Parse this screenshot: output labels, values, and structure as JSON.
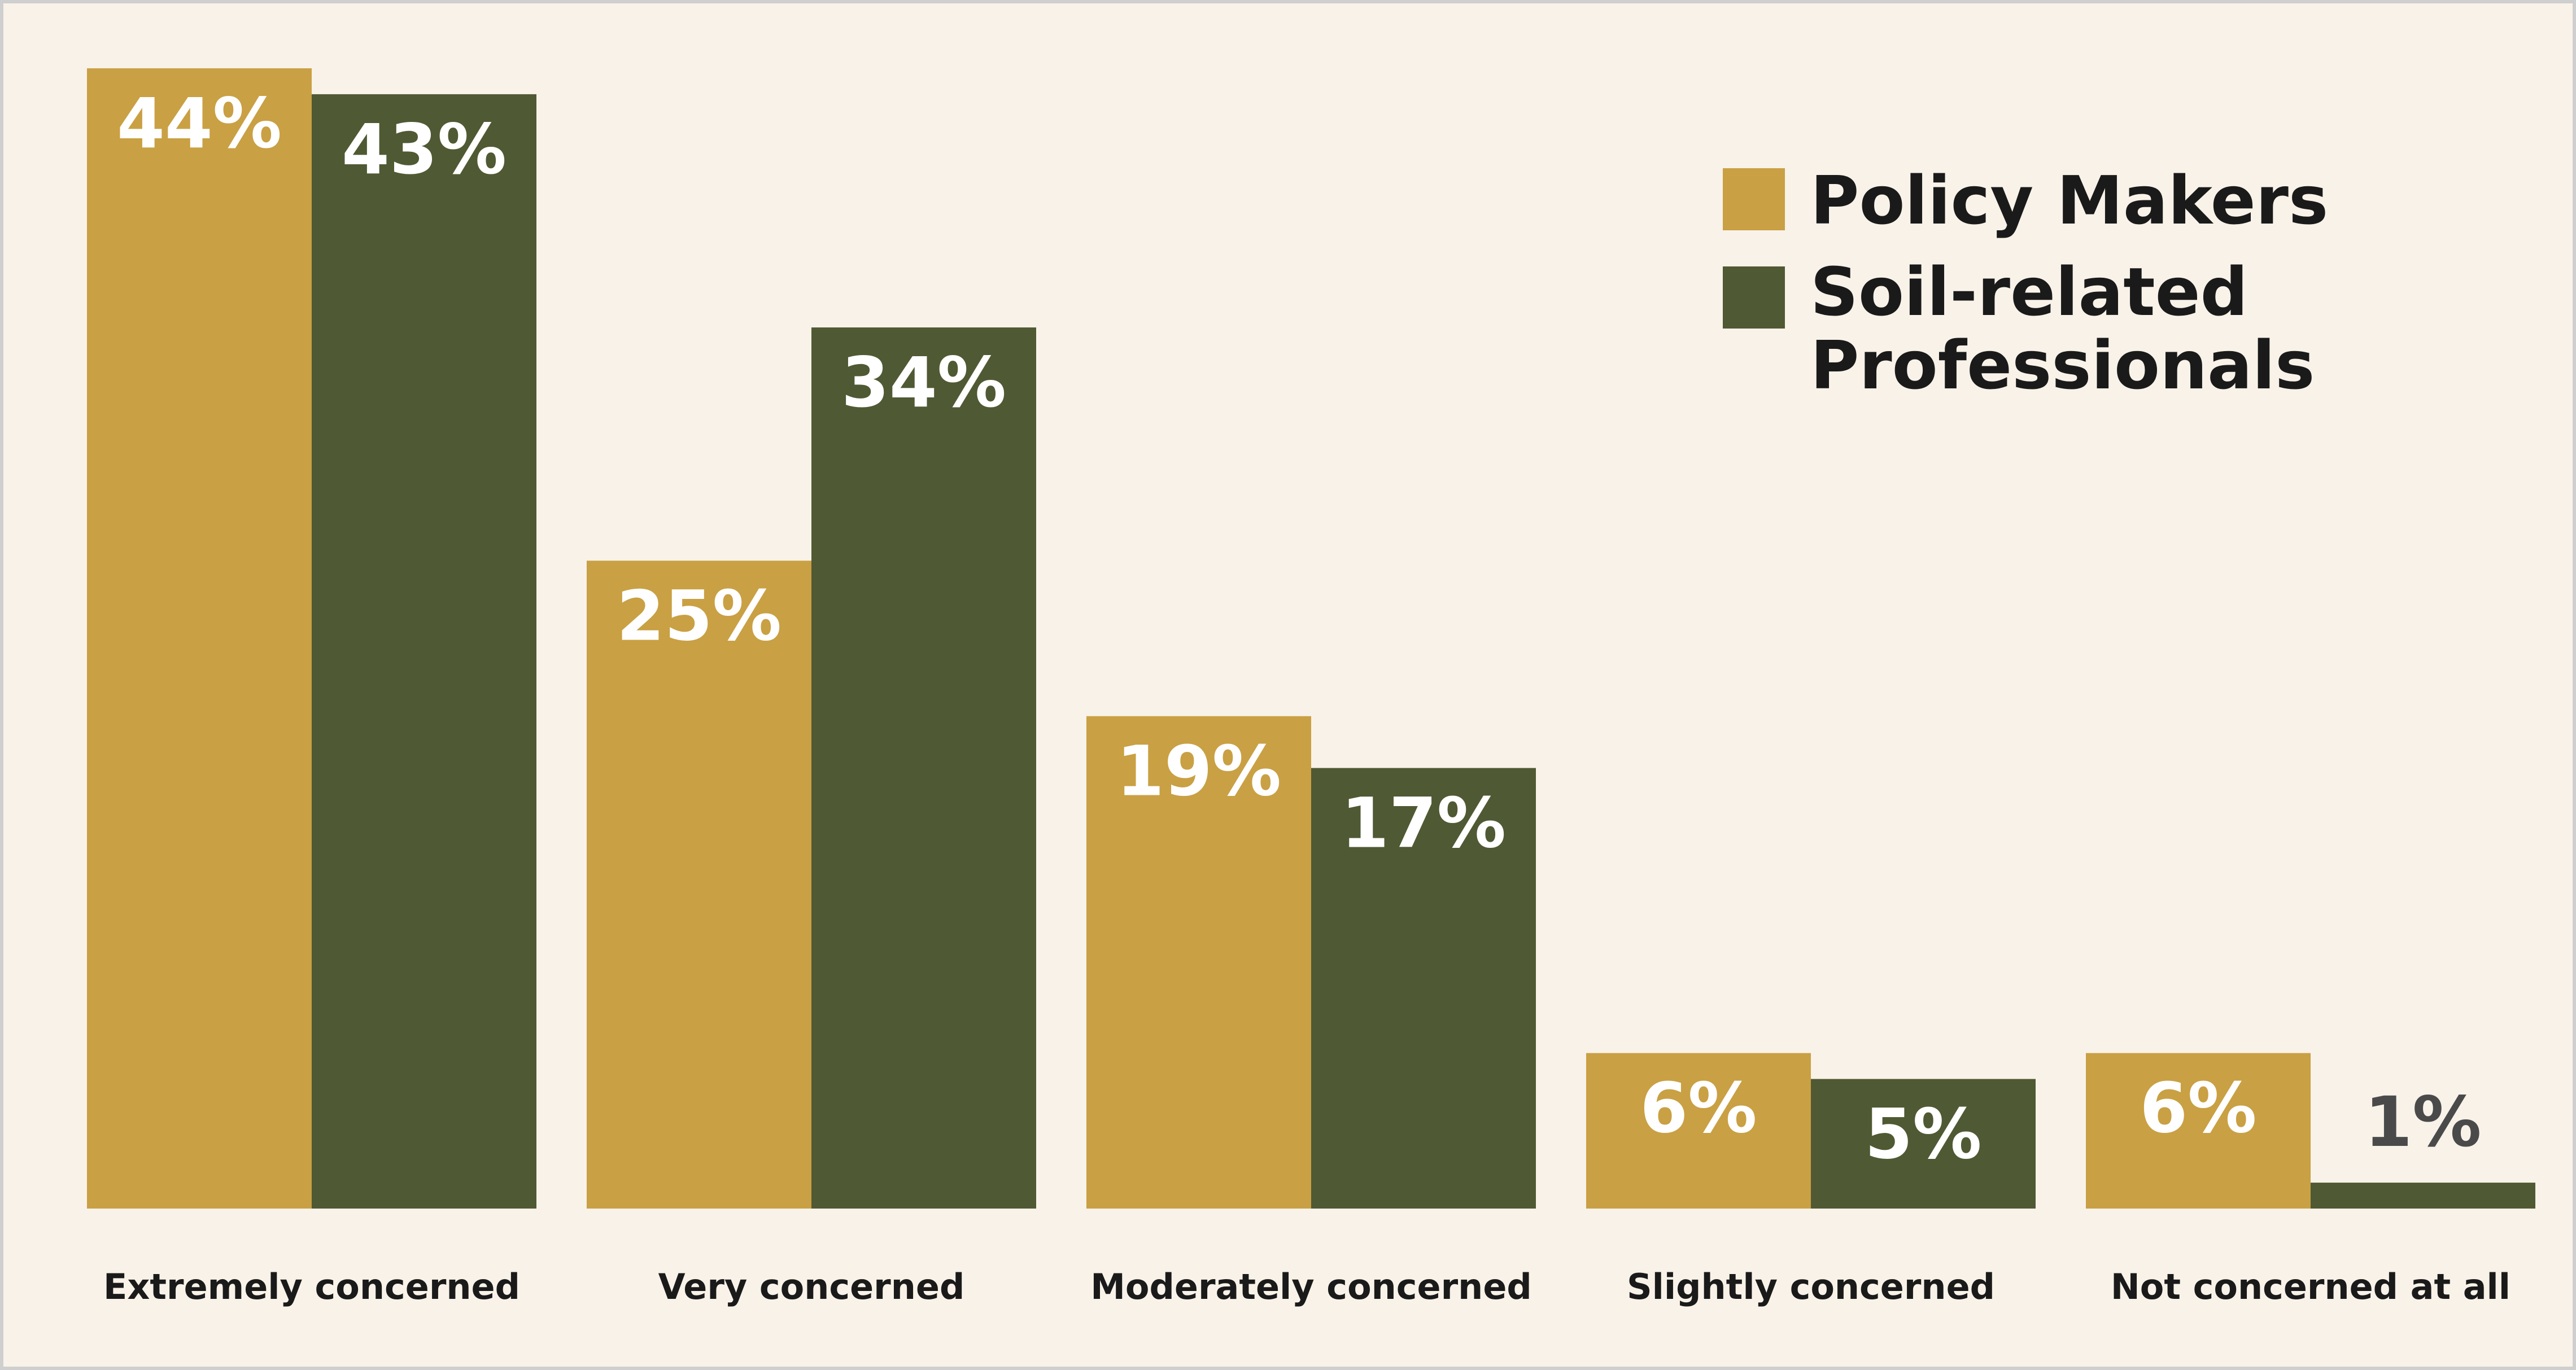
{
  "chart_data": {
    "type": "bar",
    "categories": [
      "Extremely concerned",
      "Very concerned",
      "Moderately concerned",
      "Slightly concerned",
      "Not concerned at all"
    ],
    "series": [
      {
        "name": "Policy Makers",
        "values": [
          44,
          25,
          19,
          6,
          6
        ],
        "labels": [
          "44%",
          "25%",
          "19%",
          "6%",
          "6%"
        ],
        "color": "#c9a043"
      },
      {
        "name": "Soil-related Professionals",
        "values": [
          43,
          34,
          17,
          5,
          1
        ],
        "labels": [
          "43%",
          "34%",
          "17%",
          "5%",
          "1%"
        ],
        "color": "#4f5933"
      }
    ],
    "legend": {
      "placement": "top-right",
      "items": [
        {
          "line1": "Policy Makers",
          "line2": ""
        },
        {
          "line1": "Soil-related",
          "line2": "Professionals"
        }
      ]
    },
    "ylim": [
      0,
      44
    ],
    "grid": false,
    "background": "#f8f2e8",
    "title": "",
    "xlabel": "",
    "ylabel": ""
  }
}
